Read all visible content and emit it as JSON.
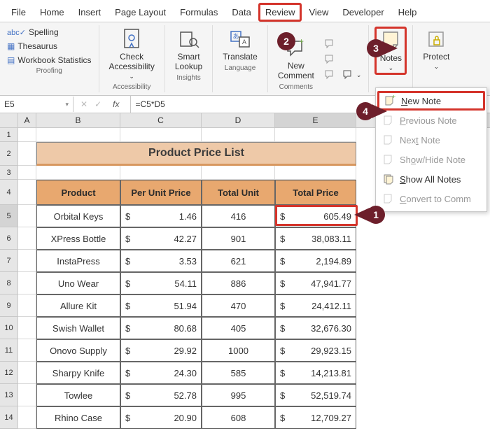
{
  "tabs": [
    "File",
    "Home",
    "Insert",
    "Page Layout",
    "Formulas",
    "Data",
    "Review",
    "View",
    "Developer",
    "Help"
  ],
  "active_tab_index": 6,
  "ribbon": {
    "proofing": {
      "label": "Proofing",
      "spelling": "Spelling",
      "thesaurus": "Thesaurus",
      "stats": "Workbook Statistics"
    },
    "accessibility": {
      "label": "Accessibility",
      "check": "Check\nAccessibility"
    },
    "insights": {
      "label": "Insights",
      "smart": "Smart\nLookup"
    },
    "language": {
      "label": "Language",
      "translate": "Translate"
    },
    "comments": {
      "label": "Comments",
      "new": "New\nComment"
    },
    "notes": {
      "label": "Notes"
    },
    "protect": {
      "label": "Protect"
    }
  },
  "notes_menu": {
    "new_note": "New Note",
    "prev": "Previous Note",
    "next": "Next Note",
    "showhide": "Show/Hide Note",
    "showall": "Show All Notes",
    "convert": "Convert to Comm"
  },
  "callouts": {
    "c1": "1",
    "c2": "2",
    "c3": "3",
    "c4": "4"
  },
  "name_box": "E5",
  "formula": "=C5*D5",
  "columns": [
    "A",
    "B",
    "C",
    "D",
    "E"
  ],
  "title": "Product Price List",
  "headers": {
    "product": "Product",
    "per_unit": "Per Unit Price",
    "total_unit": "Total Unit",
    "total_price": "Total Price"
  },
  "rows": [
    {
      "product": "Orbital Keys",
      "per_unit": "1.46",
      "units": "416",
      "total": "605.49"
    },
    {
      "product": "XPress Bottle",
      "per_unit": "42.27",
      "units": "901",
      "total": "38,083.11"
    },
    {
      "product": "InstaPress",
      "per_unit": "3.53",
      "units": "621",
      "total": "2,194.89"
    },
    {
      "product": "Uno Wear",
      "per_unit": "54.11",
      "units": "886",
      "total": "47,941.77"
    },
    {
      "product": "Allure Kit",
      "per_unit": "51.94",
      "units": "470",
      "total": "24,412.11"
    },
    {
      "product": "Swish Wallet",
      "per_unit": "80.68",
      "units": "405",
      "total": "32,676.30"
    },
    {
      "product": "Onovo Supply",
      "per_unit": "29.92",
      "units": "1000",
      "total": "29,923.15"
    },
    {
      "product": "Sharpy Knife",
      "per_unit": "24.30",
      "units": "585",
      "total": "14,213.81"
    },
    {
      "product": "Towlee",
      "per_unit": "52.78",
      "units": "995",
      "total": "52,519.74"
    },
    {
      "product": "Rhino Case",
      "per_unit": "20.90",
      "units": "608",
      "total": "12,709.27"
    }
  ],
  "currency": "$",
  "colors": {
    "callout_bg": "#6d1f2b",
    "highlight_border": "#d4342b",
    "table_header_bg": "#e8a86f",
    "title_bg": "#eec9a8"
  }
}
